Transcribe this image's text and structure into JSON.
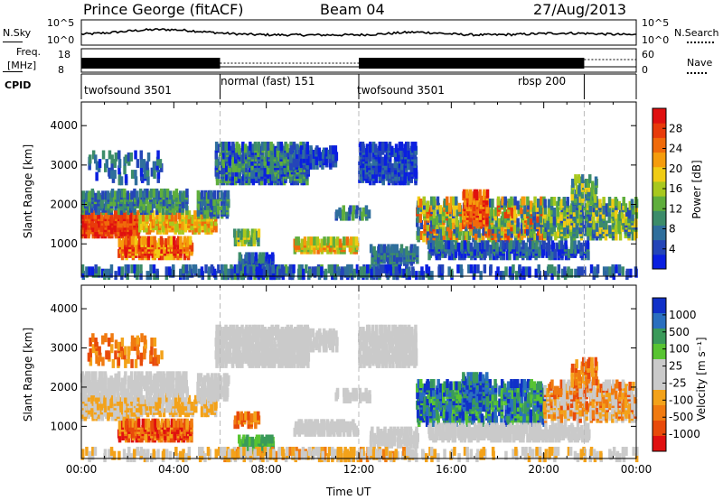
{
  "header": {
    "station": "Prince George (fitACF)",
    "beam": "Beam 04",
    "date": "27/Aug/2013"
  },
  "strip": {
    "nsky_label": "N.Sky",
    "nsky_ticks": [
      "10^5",
      "10^0"
    ],
    "nsearch_label": "N.Search",
    "nsearch_ticks": [
      "10^5",
      "10^0"
    ],
    "freq_label": "Freq.",
    "freq_unit": "[MHz]",
    "freq_ticks": [
      "18",
      "8"
    ],
    "nave_label": "Nave",
    "nave_ticks": [
      "60",
      "0"
    ],
    "cpid_label": "CPID"
  },
  "cpid_segments": [
    {
      "label": "twofsound 3501",
      "start_h": 0.0,
      "end_h": 6.0
    },
    {
      "label": "normal (fast) 151",
      "start_h": 6.0,
      "end_h": 12.0
    },
    {
      "label": "twofsound 3501",
      "start_h": 12.0,
      "end_h": 21.75
    },
    {
      "label": "rbsp 200",
      "start_h": 21.75,
      "end_h": 24.0
    }
  ],
  "chart_data": [
    {
      "type": "heatmap",
      "ylabel": "Slant Range [km]",
      "ylim": [
        180,
        4600
      ],
      "yticks": [
        "1000",
        "2000",
        "3000",
        "4000"
      ],
      "xlim": [
        0,
        24
      ],
      "colorbar": {
        "label": "Power [dB]",
        "range": [
          0,
          32
        ],
        "ticks": [
          "4",
          "8",
          "12",
          "16",
          "20",
          "24",
          "28"
        ],
        "colors": [
          "#0a1fe0",
          "#2445b8",
          "#2f6e9c",
          "#3c8c6a",
          "#5fae3c",
          "#a8c81e",
          "#f0cc14",
          "#f59c0c",
          "#f06a0a",
          "#e83a0a",
          "#e01010"
        ]
      }
    },
    {
      "type": "heatmap",
      "ylabel": "Velocity [m s⁻¹]",
      "yaxis_label": "Slant Range [km]",
      "ylim": [
        180,
        4600
      ],
      "yticks": [
        "1000",
        "2000",
        "3000",
        "4000"
      ],
      "xlim": [
        0,
        24
      ],
      "xlabel": "Time UT",
      "xticks": [
        "00:00",
        "04:00",
        "08:00",
        "12:00",
        "16:00",
        "20:00",
        "00:00"
      ],
      "colorbar": {
        "label": "Velocity [m s⁻¹]",
        "ticks": [
          "1000",
          "500",
          "100",
          "25",
          "-25",
          "-100",
          "-500",
          "-1000"
        ],
        "colors": [
          "#1030c8",
          "#2a6fbf",
          "#3a9a5a",
          "#58c432",
          "#cacaca",
          "#cacaca",
          "#f3a21a",
          "#f07a10",
          "#e84a0a",
          "#e01010"
        ]
      }
    }
  ]
}
